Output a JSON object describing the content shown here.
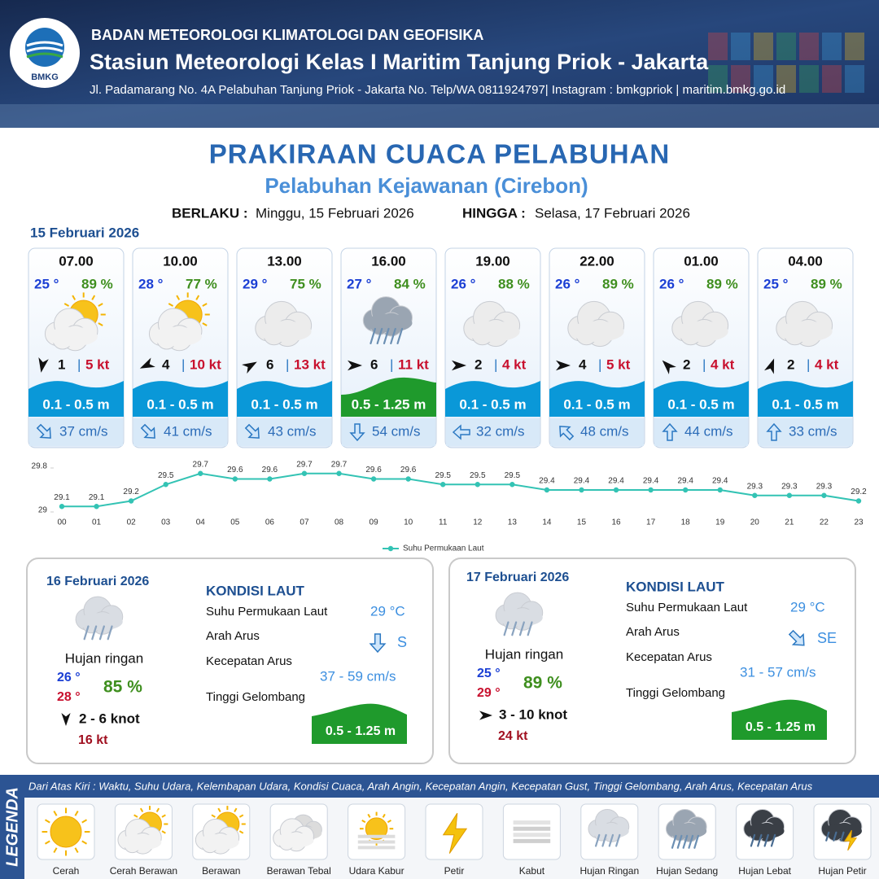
{
  "header": {
    "logo_text": "BMKG",
    "organization": "BADAN METEOROLOGI KLIMATOLOGI DAN GEOFISIKA",
    "station": "Stasiun Meteorologi Kelas I Maritim Tanjung Priok - Jakarta",
    "address": "Jl. Padamarang No. 4A Pelabuhan Tanjung Priok - Jakarta No. Telp/WA 0811924797| Instagram : bmkgpriok | maritim.bmkg.go.id"
  },
  "title": "PRAKIRAAN CUACA PELABUHAN",
  "subtitle": "Pelabuhan Kejawanan (Cirebon)",
  "validity": {
    "from_label": "BERLAKU :",
    "from": "Minggu, 15 Februari 2026",
    "to_label": "HINGGA :",
    "to": "Selasa, 17 Februari 2026"
  },
  "today": {
    "date": "15 Februari 2026",
    "separator": "|",
    "cards": [
      {
        "time": "07.00",
        "temperature": "25 °",
        "humidity": "89 %",
        "wind": "1",
        "gust": "5 kt",
        "wave": "0.1 - 0.5 m",
        "current": "37 cm/s"
      },
      {
        "time": "10.00",
        "temperature": "28 °",
        "humidity": "77 %",
        "wind": "4",
        "gust": "10 kt",
        "wave": "0.1 - 0.5 m",
        "current": "41 cm/s"
      },
      {
        "time": "13.00",
        "temperature": "29 °",
        "humidity": "75 %",
        "wind": "6",
        "gust": "13 kt",
        "wave": "0.1 - 0.5 m",
        "current": "43 cm/s"
      },
      {
        "time": "16.00",
        "temperature": "27 °",
        "humidity": "84 %",
        "wind": "6",
        "gust": "11 kt",
        "wave": "0.5 - 1.25 m",
        "current": "54 cm/s"
      },
      {
        "time": "19.00",
        "temperature": "26 °",
        "humidity": "88 %",
        "wind": "2",
        "gust": "4 kt",
        "wave": "0.1 - 0.5 m",
        "current": "32 cm/s"
      },
      {
        "time": "22.00",
        "temperature": "26 °",
        "humidity": "89 %",
        "wind": "4",
        "gust": "5 kt",
        "wave": "0.1 - 0.5 m",
        "current": "48 cm/s"
      },
      {
        "time": "01.00",
        "temperature": "26 °",
        "humidity": "89 %",
        "wind": "2",
        "gust": "4 kt",
        "wave": "0.1 - 0.5 m",
        "current": "44 cm/s"
      },
      {
        "time": "04.00",
        "temperature": "25 °",
        "humidity": "89 %",
        "wind": "2",
        "gust": "4 kt",
        "wave": "0.1 - 0.5 m",
        "current": "33 cm/s"
      }
    ]
  },
  "chart_data": {
    "type": "line",
    "categories": [
      "00",
      "01",
      "02",
      "03",
      "04",
      "05",
      "06",
      "07",
      "08",
      "09",
      "10",
      "11",
      "12",
      "13",
      "14",
      "15",
      "16",
      "17",
      "18",
      "19",
      "20",
      "21",
      "22",
      "23"
    ],
    "series": [
      {
        "name": "Suhu Permukaan Laut",
        "color": "#33c3b4",
        "values": [
          29.1,
          29.1,
          29.2,
          29.5,
          29.7,
          29.6,
          29.6,
          29.7,
          29.7,
          29.6,
          29.6,
          29.5,
          29.5,
          29.5,
          29.4,
          29.4,
          29.4,
          29.4,
          29.4,
          29.4,
          29.3,
          29.3,
          29.3,
          29.2
        ]
      }
    ],
    "ylim": [
      29,
      29.8
    ],
    "yticks": [
      29,
      29.8
    ],
    "legend": "bottom"
  },
  "days": [
    {
      "date": "16 Februari 2026",
      "condition": "Hujan ringan",
      "temp_min": "26 °",
      "temp_max": "28 °",
      "humidity": "85 %",
      "wind": "2 - 6 knot",
      "gust": "16 kt",
      "sea": {
        "heading": "KONDISI LAUT",
        "sst_label": "Suhu Permukaan Laut",
        "sst": "29 °C",
        "direction_label": "Arah Arus",
        "direction": "S",
        "speed_label": "Kecepatan Arus",
        "speed": "37 - 59 cm/s",
        "wave_label": "Tinggi Gelombang",
        "wave": "0.5 - 1.25 m"
      }
    },
    {
      "date": "17 Februari 2026",
      "condition": "Hujan ringan",
      "temp_min": "25 °",
      "temp_max": "29 °",
      "humidity": "89 %",
      "wind": "3 - 10 knot",
      "gust": "24 kt",
      "sea": {
        "heading": "KONDISI LAUT",
        "sst_label": "Suhu Permukaan Laut",
        "sst": "29 °C",
        "direction_label": "Arah Arus",
        "direction": "SE",
        "speed_label": "Kecepatan Arus",
        "speed": "31 - 57 cm/s",
        "wave_label": "Tinggi Gelombang",
        "wave": "0.5 - 1.25 m"
      }
    }
  ],
  "legend": {
    "title": "LEGENDA",
    "description": "Dari Atas Kiri : Waktu, Suhu Udara, Kelembapan Udara, Kondisi Cuaca, Arah Angin, Kecepatan Angin, Kecepatan Gust, Tinggi Gelombang, Arah Arus, Kecepatan Arus",
    "items": [
      "Cerah",
      "Cerah Berawan",
      "Berawan",
      "Berawan Tebal",
      "Udara Kabur",
      "Petir",
      "Kabut",
      "Hujan Ringan",
      "Hujan Sedang",
      "Hujan Lebat",
      "Hujan Petir"
    ]
  }
}
